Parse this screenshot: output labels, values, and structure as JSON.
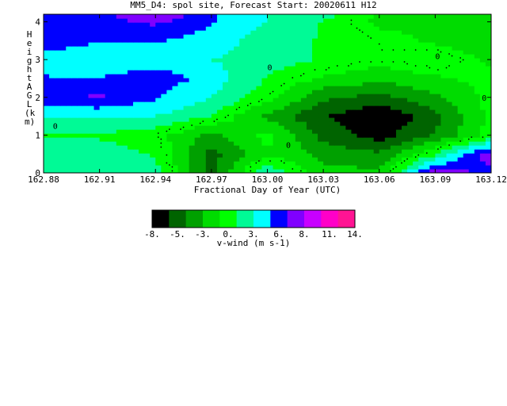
{
  "chart_data": {
    "type": "heatmap",
    "title": "MM5_D4: spol site,  Forecast Start: 20020611 H12",
    "xlabel": "Fractional Day of Year (UTC)",
    "ylabel": "Height AGL (km)",
    "colorbar_label": "v-wind (m s-1)",
    "x_ticks": [
      "162.88",
      "162.91",
      "162.94",
      "162.97",
      "163.00",
      "163.03",
      "163.06",
      "163.09",
      "163.12"
    ],
    "y_ticks": [
      "0",
      "1",
      "2",
      "3",
      "4"
    ],
    "xlim": [
      162.88,
      163.12
    ],
    "ylim": [
      0,
      4.2
    ],
    "zero_contour_label": "0",
    "colorbar": {
      "tick_labels": [
        "-8.",
        "-5.",
        "-3.",
        "0.",
        "3.",
        "6.",
        "8.",
        "11.",
        "14."
      ],
      "colors": [
        "#000000",
        "#006400",
        "#00a000",
        "#00dc00",
        "#00ff00",
        "#00fa96",
        "#00ffff",
        "#0000ff",
        "#8000ff",
        "#c800ff",
        "#ff00c8",
        "#ff1493"
      ]
    },
    "x": [
      162.88,
      162.91,
      162.94,
      162.97,
      163.0,
      163.03,
      163.06,
      163.09,
      163.12
    ],
    "y": [
      0,
      0.5,
      1,
      1.5,
      2,
      2.5,
      3,
      3.5,
      4,
      4.2
    ],
    "values": [
      [
        2,
        2,
        2,
        -5,
        3,
        -2,
        -2,
        8,
        6
      ],
      [
        2,
        2,
        1,
        -5,
        -1,
        -3,
        -4,
        1,
        8
      ],
      [
        1,
        1,
        0,
        -3,
        0,
        -5,
        -7,
        -4,
        0
      ],
      [
        3,
        3,
        3,
        1,
        -3,
        -6,
        -8,
        -5,
        0
      ],
      [
        6,
        7,
        5,
        3,
        0,
        -4,
        -5,
        -3,
        0
      ],
      [
        5,
        5,
        6,
        4,
        1,
        -1,
        -2,
        -1,
        0
      ],
      [
        4,
        3,
        4,
        3,
        2,
        1,
        0,
        1,
        -1
      ],
      [
        6,
        5,
        5,
        4,
        2,
        1,
        0,
        -1,
        -2
      ],
      [
        6,
        6,
        7,
        5,
        3,
        1,
        -1,
        -1,
        -2
      ],
      [
        6,
        6,
        9,
        5,
        3,
        2,
        -1,
        -2,
        -2
      ]
    ]
  }
}
